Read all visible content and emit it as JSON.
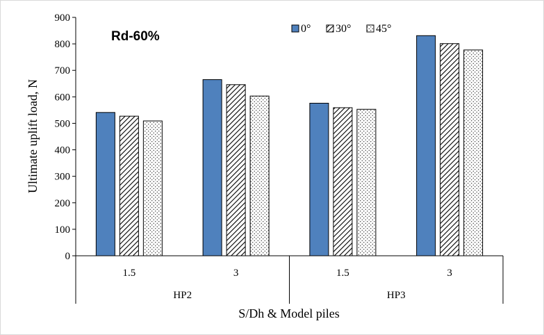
{
  "chart_data": {
    "type": "bar",
    "annotation": "Rd-60%",
    "xlabel": "S/Dh & Model piles",
    "ylabel": "Ultimate uplift load, N",
    "ylim": [
      0,
      900
    ],
    "ytick_step": 100,
    "yticks": [
      "0",
      "100",
      "200",
      "300",
      "400",
      "500",
      "600",
      "700",
      "800",
      "900"
    ],
    "groups": [
      {
        "name": "HP2",
        "categories": [
          "1.5",
          "3"
        ]
      },
      {
        "name": "HP3",
        "categories": [
          "1.5",
          "3"
        ]
      }
    ],
    "categories": [
      "1.5",
      "3",
      "1.5",
      "3"
    ],
    "series": [
      {
        "name": "0°",
        "values": [
          541,
          665,
          576,
          831
        ],
        "pattern": "solid"
      },
      {
        "name": "30°",
        "values": [
          527,
          646,
          559,
          801
        ],
        "pattern": "diagonal"
      },
      {
        "name": "45°",
        "values": [
          509,
          603,
          553,
          777
        ],
        "pattern": "dotted"
      }
    ],
    "legend_position": "top-right",
    "grid": false
  },
  "colors": {
    "bar_fill": "#4f81bd",
    "bar_stroke": "#000000",
    "hatch": "#000000"
  }
}
